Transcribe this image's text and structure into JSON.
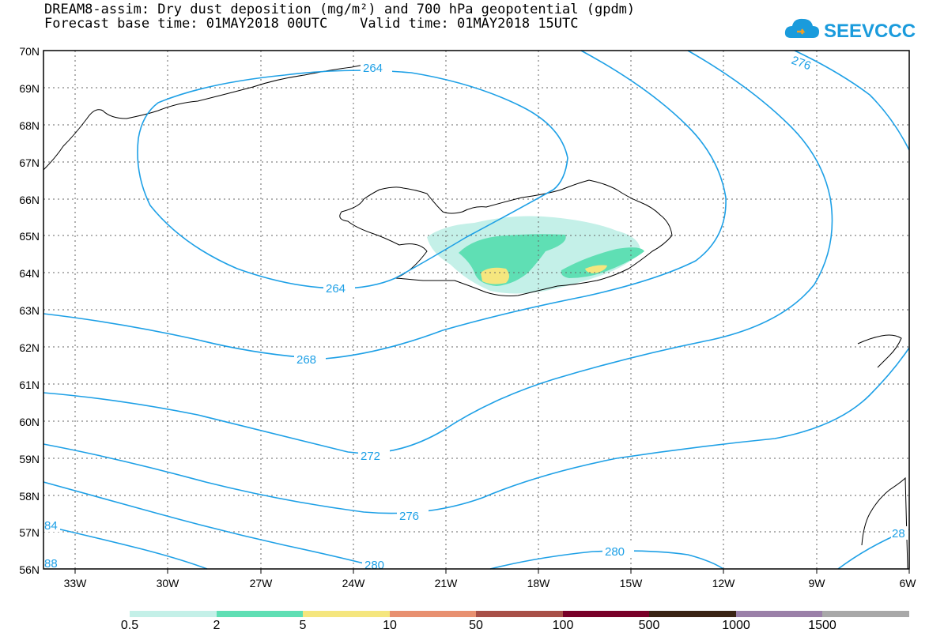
{
  "title": {
    "line1": "DREAM8-assim: Dry dust deposition (mg/m²) and 700 hPa geopotential (gpdm)",
    "line2": "Forecast base time: 01MAY2018 00UTC    Valid time: 01MAY2018 15UTC"
  },
  "logo": {
    "text": "SEEVCCC",
    "icon": "cloud-logo-icon",
    "color": "#1a9bdc"
  },
  "map": {
    "lat_labels": [
      "70N",
      "69N",
      "68N",
      "67N",
      "66N",
      "65N",
      "64N",
      "63N",
      "62N",
      "61N",
      "60N",
      "59N",
      "58N",
      "57N",
      "56N"
    ],
    "lon_labels": [
      "33W",
      "30W",
      "27W",
      "24W",
      "21W",
      "18W",
      "15W",
      "12W",
      "9W",
      "6W"
    ],
    "contour_color": "#1ea0e6",
    "contour_labels": [
      "264",
      "264",
      "268",
      "272",
      "276",
      "280",
      "280",
      "276",
      "84",
      "88",
      "28"
    ]
  },
  "colorbar": {
    "labels": [
      "0.5",
      "2",
      "5",
      "10",
      "50",
      "100",
      "500",
      "1000",
      "1500"
    ],
    "colors": [
      "#c4f0e8",
      "#5fdfb4",
      "#f5e67e",
      "#e89070",
      "#a85048",
      "#780028",
      "#3a2414",
      "#9a80a8",
      "#a8a8a8"
    ]
  }
}
